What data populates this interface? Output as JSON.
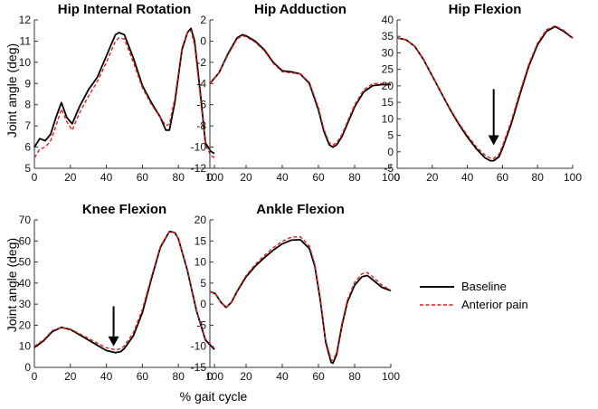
{
  "figure": {
    "ylabel": "Joint angle (deg)",
    "xlabel": "% gait cycle"
  },
  "legend": {
    "entries": [
      {
        "label": "Baseline",
        "color": "#000000",
        "dash": "solid"
      },
      {
        "label": "Anterior pain",
        "color": "#e0201a",
        "dash": "dashed"
      }
    ],
    "placement": "right-bottom"
  },
  "colors": {
    "baseline": "#000000",
    "anterior_pain": "#e0201a",
    "arrow": "#000000"
  },
  "chart_data": [
    {
      "type": "line",
      "title": "Hip Internal Rotation",
      "xlim": [
        0,
        100
      ],
      "ylim": [
        5,
        12
      ],
      "xticks": [
        0,
        20,
        40,
        60,
        80,
        100
      ],
      "yticks": [
        5,
        6,
        7,
        8,
        9,
        10,
        11,
        12
      ],
      "series": [
        {
          "name": "Baseline",
          "x": [
            0,
            3,
            6,
            9,
            12,
            15,
            18,
            21,
            25,
            30,
            35,
            40,
            45,
            47,
            50,
            55,
            60,
            65,
            70,
            73,
            75,
            78,
            82,
            85,
            87,
            89,
            92,
            95,
            98,
            100
          ],
          "y": [
            6.0,
            6.4,
            6.3,
            6.6,
            7.4,
            8.1,
            7.4,
            7.1,
            7.9,
            8.7,
            9.3,
            10.3,
            11.3,
            11.4,
            11.3,
            10.2,
            8.9,
            8.1,
            7.4,
            6.8,
            6.8,
            8.1,
            10.6,
            11.4,
            11.6,
            11.0,
            8.7,
            6.2,
            5.8,
            5.7
          ]
        },
        {
          "name": "Anterior pain",
          "x": [
            0,
            3,
            6,
            9,
            12,
            15,
            18,
            21,
            25,
            30,
            35,
            40,
            45,
            47,
            50,
            55,
            60,
            65,
            70,
            73,
            75,
            78,
            82,
            85,
            87,
            89,
            92,
            95,
            98,
            100
          ],
          "y": [
            5.5,
            5.9,
            6.0,
            6.3,
            7.0,
            7.8,
            7.2,
            6.8,
            7.6,
            8.4,
            9.1,
            10.0,
            11.0,
            11.15,
            11.1,
            10.0,
            8.8,
            8.0,
            7.4,
            7.0,
            7.1,
            8.3,
            10.7,
            11.4,
            11.5,
            10.8,
            8.5,
            6.1,
            5.6,
            5.5
          ]
        }
      ]
    },
    {
      "type": "line",
      "title": "Hip Adduction",
      "xlim": [
        0,
        100
      ],
      "ylim": [
        -12,
        2
      ],
      "xticks": [
        0,
        20,
        40,
        60,
        80,
        100
      ],
      "yticks": [
        -12,
        -10,
        -8,
        -6,
        -4,
        -2,
        0,
        2
      ],
      "series": [
        {
          "name": "Baseline",
          "x": [
            0,
            5,
            10,
            15,
            18,
            20,
            25,
            30,
            35,
            40,
            45,
            50,
            55,
            60,
            63,
            66,
            68,
            70,
            73,
            76,
            80,
            85,
            90,
            95,
            100
          ],
          "y": [
            -4.0,
            -3.0,
            -1.2,
            0.3,
            0.6,
            0.5,
            0.0,
            -0.8,
            -2.0,
            -2.8,
            -2.9,
            -3.1,
            -4.0,
            -6.5,
            -8.5,
            -9.8,
            -10.0,
            -9.8,
            -9.0,
            -7.8,
            -6.2,
            -4.8,
            -4.2,
            -4.1,
            -4.1
          ]
        },
        {
          "name": "Anterior pain",
          "x": [
            0,
            5,
            10,
            15,
            18,
            20,
            25,
            30,
            35,
            40,
            45,
            50,
            55,
            60,
            63,
            66,
            68,
            70,
            73,
            76,
            80,
            85,
            90,
            95,
            100
          ],
          "y": [
            -4.0,
            -3.0,
            -1.3,
            0.2,
            0.5,
            0.4,
            -0.1,
            -0.9,
            -2.1,
            -2.9,
            -3.0,
            -3.1,
            -3.9,
            -6.3,
            -8.3,
            -9.6,
            -9.8,
            -9.6,
            -8.8,
            -7.6,
            -6.0,
            -4.6,
            -4.0,
            -4.0,
            -4.0
          ]
        }
      ]
    },
    {
      "type": "line",
      "title": "Hip Flexion",
      "xlim": [
        0,
        100
      ],
      "ylim": [
        -5,
        40
      ],
      "xticks": [
        0,
        20,
        40,
        60,
        80,
        100
      ],
      "yticks": [
        -5,
        0,
        5,
        10,
        15,
        20,
        25,
        30,
        35,
        40
      ],
      "annotations": [
        {
          "type": "arrow",
          "x": 55,
          "y_from": 19,
          "y_to": 2
        }
      ],
      "series": [
        {
          "name": "Baseline",
          "x": [
            0,
            5,
            10,
            15,
            20,
            25,
            30,
            35,
            40,
            45,
            50,
            53,
            55,
            58,
            60,
            65,
            70,
            75,
            80,
            85,
            90,
            95,
            100
          ],
          "y": [
            34.5,
            34.0,
            32.0,
            28.0,
            23.0,
            18.0,
            13.0,
            8.5,
            4.5,
            1.0,
            -1.8,
            -2.7,
            -2.7,
            -1.5,
            1.0,
            8.5,
            17.5,
            26.0,
            32.5,
            36.5,
            38.0,
            36.5,
            34.5
          ]
        },
        {
          "name": "Anterior pain",
          "x": [
            0,
            5,
            10,
            15,
            20,
            25,
            30,
            35,
            40,
            45,
            50,
            53,
            55,
            58,
            60,
            65,
            70,
            75,
            80,
            85,
            90,
            95,
            100
          ],
          "y": [
            34.5,
            34.0,
            32.0,
            28.0,
            23.0,
            18.0,
            13.2,
            8.8,
            5.0,
            1.6,
            -1.0,
            -1.9,
            -2.0,
            -0.8,
            1.8,
            9.3,
            18.3,
            26.6,
            33.0,
            37.0,
            38.2,
            36.8,
            34.6
          ]
        }
      ]
    },
    {
      "type": "line",
      "title": "Knee Flexion",
      "xlim": [
        0,
        100
      ],
      "ylim": [
        0,
        70
      ],
      "xticks": [
        0,
        20,
        40,
        60,
        80,
        100
      ],
      "yticks": [
        0,
        10,
        20,
        30,
        40,
        50,
        60,
        70
      ],
      "annotations": [
        {
          "type": "arrow",
          "x": 44,
          "y_from": 29,
          "y_to": 10
        }
      ],
      "series": [
        {
          "name": "Baseline",
          "x": [
            0,
            5,
            10,
            15,
            20,
            25,
            30,
            35,
            40,
            45,
            48,
            50,
            55,
            60,
            65,
            70,
            75,
            78,
            80,
            85,
            90,
            95,
            100
          ],
          "y": [
            9.5,
            12.5,
            17.0,
            19.0,
            18.0,
            15.5,
            13.0,
            10.5,
            8.0,
            7.0,
            7.5,
            9.0,
            15.0,
            26.0,
            42.0,
            57.0,
            64.5,
            64.0,
            61.0,
            46.0,
            27.0,
            13.0,
            8.5
          ]
        },
        {
          "name": "Anterior pain",
          "x": [
            0,
            5,
            10,
            15,
            20,
            25,
            30,
            35,
            40,
            45,
            48,
            50,
            55,
            60,
            65,
            70,
            75,
            78,
            80,
            85,
            90,
            95,
            100
          ],
          "y": [
            10.0,
            13.0,
            17.5,
            19.0,
            18.2,
            16.0,
            13.8,
            11.5,
            9.3,
            8.3,
            8.8,
            10.3,
            16.5,
            27.5,
            43.0,
            57.5,
            64.5,
            64.0,
            61.0,
            46.5,
            27.5,
            13.5,
            9.0
          ]
        }
      ]
    },
    {
      "type": "line",
      "title": "Ankle Flexion",
      "xlim": [
        0,
        100
      ],
      "ylim": [
        -15,
        20
      ],
      "xticks": [
        0,
        20,
        40,
        60,
        80,
        100
      ],
      "yticks": [
        -15,
        -10,
        -5,
        0,
        5,
        10,
        15,
        20
      ],
      "series": [
        {
          "name": "Baseline",
          "x": [
            0,
            3,
            6,
            9,
            12,
            15,
            20,
            25,
            30,
            35,
            40,
            45,
            50,
            55,
            58,
            61,
            64,
            67,
            68,
            70,
            73,
            76,
            80,
            84,
            87,
            90,
            95,
            100
          ],
          "y": [
            3.0,
            2.5,
            0.5,
            -0.8,
            0.5,
            3.0,
            6.5,
            9.0,
            11.0,
            12.8,
            14.3,
            15.2,
            15.3,
            13.2,
            9.0,
            1.0,
            -9.0,
            -13.8,
            -14.0,
            -12.0,
            -5.0,
            0.5,
            4.5,
            6.5,
            6.8,
            5.8,
            4.0,
            3.2
          ]
        },
        {
          "name": "Anterior pain",
          "x": [
            0,
            3,
            6,
            9,
            12,
            15,
            20,
            25,
            30,
            35,
            40,
            45,
            50,
            55,
            58,
            61,
            64,
            67,
            68,
            70,
            73,
            76,
            80,
            84,
            87,
            90,
            95,
            100
          ],
          "y": [
            3.0,
            2.5,
            0.5,
            -0.8,
            0.6,
            3.2,
            6.8,
            9.4,
            11.5,
            13.4,
            14.9,
            15.9,
            16.0,
            13.8,
            9.5,
            1.5,
            -8.5,
            -13.2,
            -13.4,
            -11.5,
            -4.5,
            1.0,
            5.2,
            7.2,
            7.5,
            6.5,
            4.5,
            3.3
          ]
        }
      ]
    }
  ]
}
